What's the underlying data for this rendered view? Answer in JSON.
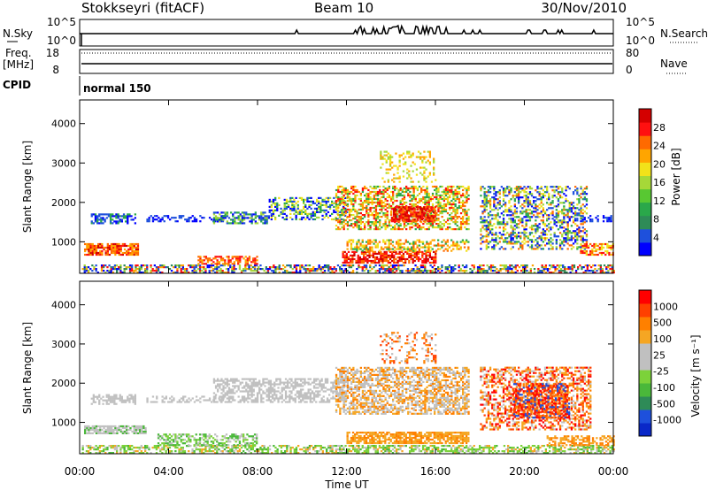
{
  "header": {
    "title": "Stokkseyri (fitACF)",
    "beam": "Beam 10",
    "date": "30/Nov/2010"
  },
  "nsky_panel": {
    "left_label": "N.Sky",
    "left_ticks": [
      "10^5",
      "10^0"
    ],
    "right_ticks": [
      "10^5",
      "10^0"
    ],
    "right_label": "N.Search"
  },
  "freq_panel": {
    "left_label_1": "Freq.",
    "left_label_2": "[MHz]",
    "left_ticks": [
      "18",
      "8"
    ],
    "right_ticks": [
      "80",
      "0"
    ],
    "right_label": "Nave"
  },
  "cpid": {
    "label": "CPID",
    "mode": "normal 150"
  },
  "chart_data": [
    {
      "type": "heatmap",
      "name": "power",
      "ylabel": "Slant Range [km]",
      "ylim": [
        200,
        4600
      ],
      "yticks": [
        1000,
        2000,
        3000,
        4000
      ],
      "x_range_hours": [
        0,
        24
      ],
      "colorbar": {
        "label": "Power [dB]",
        "ticks": [
          "28",
          "24",
          "20",
          "16",
          "12",
          "8",
          "4"
        ],
        "colors": [
          "#0000ff",
          "#1e50dc",
          "#2e8b57",
          "#2aa84a",
          "#58c832",
          "#a6d838",
          "#f2e21a",
          "#ffa500",
          "#ff6a00",
          "#ff1010",
          "#d40000"
        ]
      }
    },
    {
      "type": "heatmap",
      "name": "velocity",
      "ylabel": "Slant Range [km]",
      "ylim": [
        200,
        4600
      ],
      "yticks": [
        1000,
        2000,
        3000,
        4000
      ],
      "x_range_hours": [
        0,
        24
      ],
      "colorbar": {
        "label": "Velocity [m s⁻¹]",
        "ticks": [
          "1000",
          "500",
          "100",
          "25",
          "-25",
          "-100",
          "-500",
          "-1000"
        ],
        "colors": [
          "#0a28c8",
          "#1e50dc",
          "#2e8b57",
          "#4ab83a",
          "#7cd23a",
          "#c0c0c0",
          "#c0c0c0",
          "#f5a623",
          "#ff8000",
          "#ff4000",
          "#ff0000"
        ]
      }
    }
  ],
  "xaxis": {
    "ticks": [
      "00:00",
      "04:00",
      "08:00",
      "12:00",
      "16:00",
      "20:00",
      "00:00"
    ],
    "label": "Time UT"
  }
}
